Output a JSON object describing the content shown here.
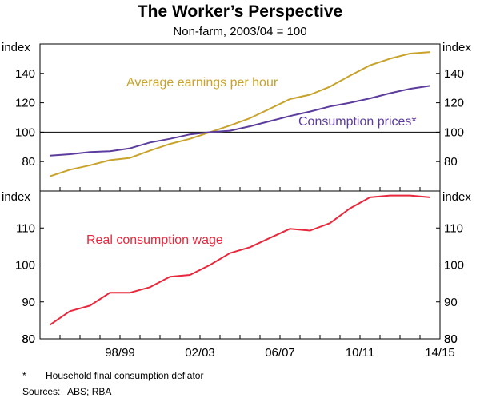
{
  "chart_data": {
    "title": "The Worker’s Perspective",
    "subtitle": "Non-farm, 2003/04 = 100",
    "x_tick_labels": [
      "98/99",
      "02/03",
      "06/07",
      "10/11",
      "14/15"
    ],
    "unit_label": "index",
    "panels": [
      {
        "name": "top",
        "type": "line",
        "ylim": [
          60,
          160
        ],
        "yticks": [
          "80",
          "100",
          "120",
          "140"
        ],
        "series": [
          {
            "name": "Average earnings per hour",
            "color": "#c8a32c",
            "x": [
              1995.5,
              1996.5,
              1997.5,
              1998.5,
              1999.5,
              2000.5,
              2001.5,
              2002.5,
              2003.5,
              2004.5,
              2005.5,
              2006.5,
              2007.5,
              2008.5,
              2009.5,
              2010.5,
              2011.5,
              2012.5,
              2013.5,
              2014.5
            ],
            "values": [
              70,
              74.5,
              77.5,
              81,
              82.5,
              87.5,
              92,
              95.5,
              100,
              104.5,
              109.5,
              116,
              122.5,
              125.5,
              131,
              138.5,
              145.5,
              150,
              153.5,
              154.5
            ]
          },
          {
            "name": "Consumption prices*",
            "color": "#5c3c9c",
            "x": [
              1995.5,
              1996.5,
              1997.5,
              1998.5,
              1999.5,
              2000.5,
              2001.5,
              2002.5,
              2003.5,
              2004.5,
              2005.5,
              2006.5,
              2007.5,
              2008.5,
              2009.5,
              2010.5,
              2011.5,
              2012.5,
              2013.5,
              2014.5
            ],
            "values": [
              84,
              85,
              86.5,
              87,
              89,
              93,
              95.5,
              98.5,
              100,
              101,
              104,
              107.5,
              111,
              114,
              117.5,
              120,
              123,
              126.5,
              129.5,
              131.5
            ]
          }
        ]
      },
      {
        "name": "bottom",
        "type": "line",
        "ylim": [
          80,
          120
        ],
        "yticks": [
          "80",
          "90",
          "100",
          "110"
        ],
        "series": [
          {
            "name": "Real consumption wage",
            "color": "#e8283c",
            "x": [
              1995.5,
              1996.5,
              1997.5,
              1998.5,
              1999.5,
              2000.5,
              2001.5,
              2002.5,
              2003.5,
              2004.5,
              2005.5,
              2006.5,
              2007.5,
              2008.5,
              2009.5,
              2010.5,
              2011.5,
              2012.5,
              2013.5,
              2014.5
            ],
            "values": [
              83.8,
              87.5,
              89,
              92.5,
              92.5,
              94,
              96.8,
              97.3,
              100,
              103.2,
              104.8,
              107.3,
              109.8,
              109.3,
              111.3,
              115.3,
              118.3,
              118.8,
              118.8,
              118.3
            ]
          }
        ]
      }
    ]
  },
  "footnote": {
    "marker": "*",
    "text": "Household final consumption deflator"
  },
  "sources": "Sources:  ABS; RBA"
}
